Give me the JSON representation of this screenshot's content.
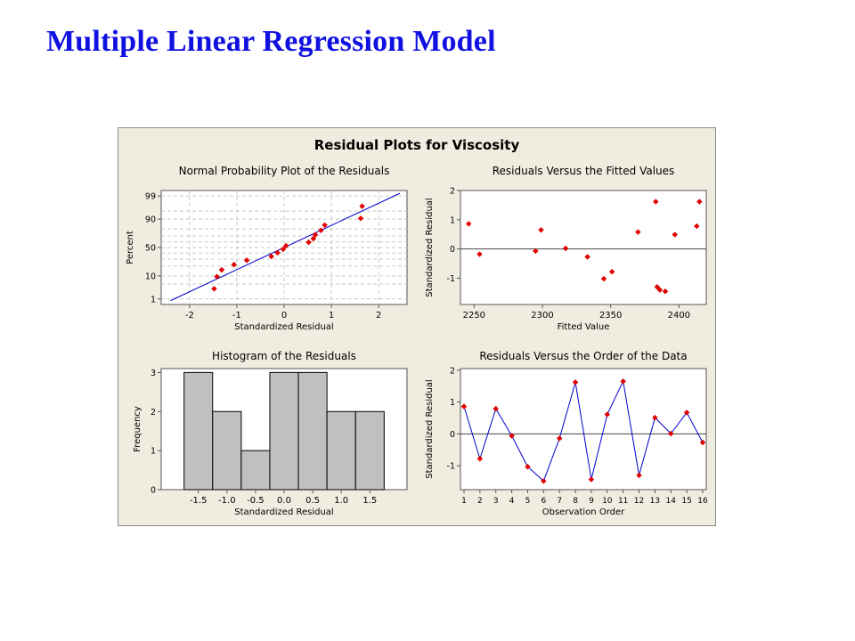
{
  "slide": {
    "title": "Multiple Linear Regression  Model"
  },
  "figure": {
    "title": "Residual Plots for Viscosity"
  },
  "colors": {
    "panel_bg": "#f0ece0",
    "point": "#e00000",
    "line": "#0000cc",
    "bar": "#c0c0c0",
    "slide_title": "#1010e0"
  },
  "chart_data": [
    {
      "type": "scatter",
      "title": "Normal Probability Plot of the Residuals",
      "xlabel": "Standardized Residual",
      "ylabel": "Percent",
      "xlim": [
        -2.6,
        2.6
      ],
      "xticks": [
        -2,
        -1,
        0,
        1,
        2
      ],
      "yticks": [
        1,
        10,
        50,
        90,
        99
      ],
      "grid": true,
      "fit_line": true,
      "points": [
        {
          "x": -1.48,
          "y": 3.1
        },
        {
          "x": -1.42,
          "y": 9.4
        },
        {
          "x": -1.32,
          "y": 15.6
        },
        {
          "x": -1.06,
          "y": 21.9
        },
        {
          "x": -0.79,
          "y": 28.1
        },
        {
          "x": -0.27,
          "y": 34.4
        },
        {
          "x": -0.14,
          "y": 40.6
        },
        {
          "x": -0.02,
          "y": 46.9
        },
        {
          "x": 0.04,
          "y": 53.1
        },
        {
          "x": 0.52,
          "y": 59.4
        },
        {
          "x": 0.62,
          "y": 65.6
        },
        {
          "x": 0.66,
          "y": 71.9
        },
        {
          "x": 0.78,
          "y": 78.1
        },
        {
          "x": 0.86,
          "y": 84.4
        },
        {
          "x": 1.62,
          "y": 90.6
        },
        {
          "x": 1.65,
          "y": 96.9
        }
      ]
    },
    {
      "type": "scatter",
      "title": "Residuals Versus the Fitted Values",
      "xlabel": "Fitted Value",
      "ylabel": "Standardized Residual",
      "xlim": [
        2240,
        2420
      ],
      "ylim": [
        -1.9,
        2.0
      ],
      "xticks": [
        2250,
        2300,
        2350,
        2400
      ],
      "yticks": [
        -1,
        0,
        1,
        2
      ],
      "reference_line": 0,
      "points": [
        {
          "x": 2246,
          "y": 0.86
        },
        {
          "x": 2254,
          "y": -0.18
        },
        {
          "x": 2295,
          "y": -0.07
        },
        {
          "x": 2299,
          "y": 0.65
        },
        {
          "x": 2317,
          "y": 0.02
        },
        {
          "x": 2333,
          "y": -0.27
        },
        {
          "x": 2345,
          "y": -1.02
        },
        {
          "x": 2351,
          "y": -0.78
        },
        {
          "x": 2370,
          "y": 0.58
        },
        {
          "x": 2383,
          "y": 1.62
        },
        {
          "x": 2384,
          "y": -1.3
        },
        {
          "x": 2386,
          "y": -1.4
        },
        {
          "x": 2390,
          "y": -1.45
        },
        {
          "x": 2397,
          "y": 0.49
        },
        {
          "x": 2413,
          "y": 0.78
        },
        {
          "x": 2415,
          "y": 1.62
        }
      ]
    },
    {
      "type": "bar",
      "title": "Histogram of the Residuals",
      "xlabel": "Standardized Residual",
      "ylabel": "Frequency",
      "bin_edges": [
        -1.75,
        -1.25,
        -0.75,
        -0.25,
        0.25,
        0.75,
        1.25,
        1.75
      ],
      "values": [
        3,
        2,
        1,
        3,
        3,
        2,
        2
      ],
      "xticks": [
        "-1.5",
        "-1.0",
        "-0.5",
        "0.0",
        "0.5",
        "1.0",
        "1.5"
      ],
      "yticks": [
        0,
        1,
        2,
        3
      ],
      "ylim": [
        0,
        3.1
      ]
    },
    {
      "type": "line",
      "title": "Residuals Versus the Order of the Data",
      "xlabel": "Observation Order",
      "ylabel": "Standardized Residual",
      "ylim": [
        -1.75,
        2.05
      ],
      "yticks": [
        -1,
        0,
        1,
        2
      ],
      "reference_line": 0,
      "x": [
        1,
        2,
        3,
        4,
        5,
        6,
        7,
        8,
        9,
        10,
        11,
        12,
        13,
        14,
        15,
        16
      ],
      "values": [
        0.86,
        -0.78,
        0.79,
        -0.06,
        -1.03,
        -1.48,
        -0.14,
        1.62,
        -1.43,
        0.61,
        1.65,
        -1.3,
        0.51,
        0.01,
        0.67,
        -0.27
      ]
    }
  ]
}
